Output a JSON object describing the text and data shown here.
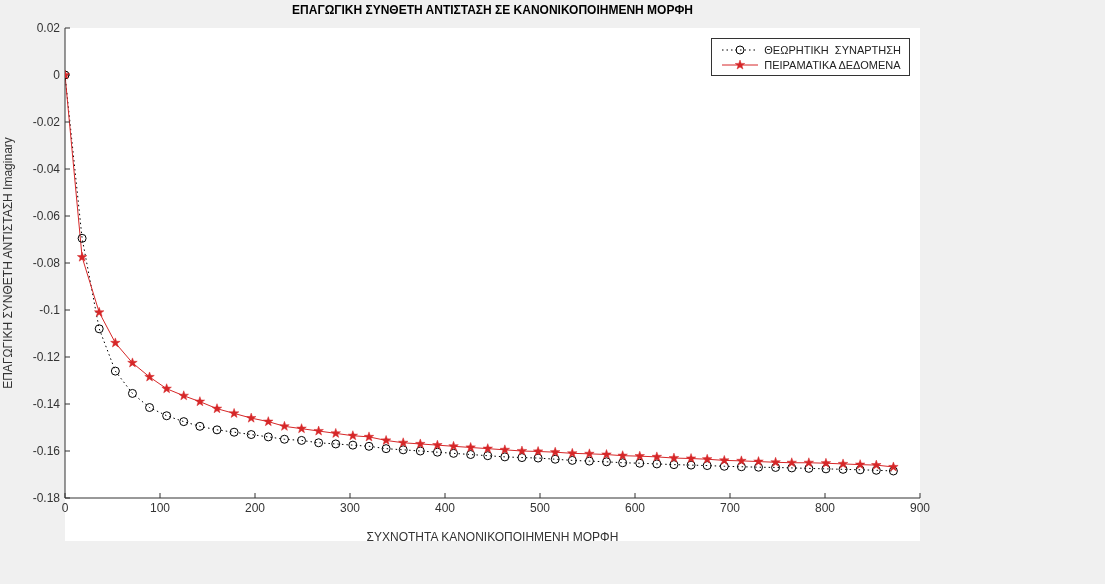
{
  "chart_data": {
    "type": "line",
    "title": "ΕΠΑΓΩΓΙΚΗ ΣΥΝΘΕΤΗ ΑΝΤΙΣΤΑΣΗ ΣΕ ΚΑΝΟΝΙΚΟΠΟΙΗΜΕΝΗ ΜΟΡΦΗ",
    "xlabel": "ΣΥΧΝΟΤΗΤΑ ΚΑΝΟΝΙΚΟΠΟΙΗΜΕΝΗ ΜΟΡΦΗ",
    "ylabel": "ΕΠΑΓΩΓΙΚΗ ΣΥΝΘΕΤΗ ΑΝΤΙΣΤΑΣΗ Imaginary",
    "x": [
      0,
      18,
      36,
      53,
      71,
      89,
      107,
      125,
      142,
      160,
      178,
      196,
      214,
      231,
      249,
      267,
      285,
      303,
      320,
      338,
      356,
      374,
      392,
      409,
      427,
      445,
      463,
      481,
      498,
      516,
      534,
      552,
      570,
      587,
      605,
      623,
      641,
      659,
      676,
      694,
      712,
      730,
      748,
      765,
      783,
      801,
      819,
      837,
      854,
      872
    ],
    "xlim": [
      0,
      900
    ],
    "xticks": [
      0,
      100,
      200,
      300,
      400,
      500,
      600,
      700,
      800,
      900
    ],
    "ylim": [
      -0.18,
      0.02
    ],
    "yticks": [
      -0.18,
      -0.16,
      -0.14,
      -0.12,
      -0.1,
      -0.08,
      -0.06,
      -0.04,
      -0.02,
      0,
      0.02
    ],
    "grid": false,
    "legend": "top right",
    "series": [
      {
        "name": "ΘΕΩΡΗΤΙΚΗ  ΣΥΝΑΡΤΗΣΗ",
        "color": "#000000",
        "marker": "circle",
        "line_style": "dotted",
        "values": [
          0,
          -0.0695,
          -0.108,
          -0.126,
          -0.1355,
          -0.1415,
          -0.145,
          -0.1475,
          -0.1495,
          -0.151,
          -0.152,
          -0.153,
          -0.154,
          -0.155,
          -0.1555,
          -0.1565,
          -0.157,
          -0.1575,
          -0.158,
          -0.159,
          -0.1595,
          -0.16,
          -0.1605,
          -0.161,
          -0.1615,
          -0.162,
          -0.1625,
          -0.1628,
          -0.163,
          -0.1635,
          -0.164,
          -0.1643,
          -0.1646,
          -0.165,
          -0.1652,
          -0.1655,
          -0.1658,
          -0.166,
          -0.1662,
          -0.1665,
          -0.1667,
          -0.1669,
          -0.167,
          -0.1672,
          -0.1674,
          -0.1676,
          -0.1678,
          -0.168,
          -0.1682,
          -0.1685
        ]
      },
      {
        "name": "ΠΕΙΡΑΜΑΤΙΚΑ ΔΕΔΟΜΕΝΑ",
        "color": "#d62728",
        "marker": "star",
        "line_style": "solid",
        "values": [
          0,
          -0.0775,
          -0.101,
          -0.114,
          -0.1225,
          -0.1285,
          -0.1335,
          -0.1365,
          -0.139,
          -0.142,
          -0.144,
          -0.146,
          -0.1475,
          -0.1495,
          -0.1505,
          -0.1515,
          -0.1525,
          -0.1535,
          -0.154,
          -0.1555,
          -0.1565,
          -0.157,
          -0.1575,
          -0.158,
          -0.1585,
          -0.159,
          -0.1595,
          -0.16,
          -0.1602,
          -0.1605,
          -0.161,
          -0.1612,
          -0.1615,
          -0.162,
          -0.1622,
          -0.1625,
          -0.163,
          -0.1632,
          -0.1635,
          -0.164,
          -0.1642,
          -0.1645,
          -0.1648,
          -0.165,
          -0.165,
          -0.1652,
          -0.1655,
          -0.1658,
          -0.166,
          -0.1668
        ]
      }
    ]
  }
}
